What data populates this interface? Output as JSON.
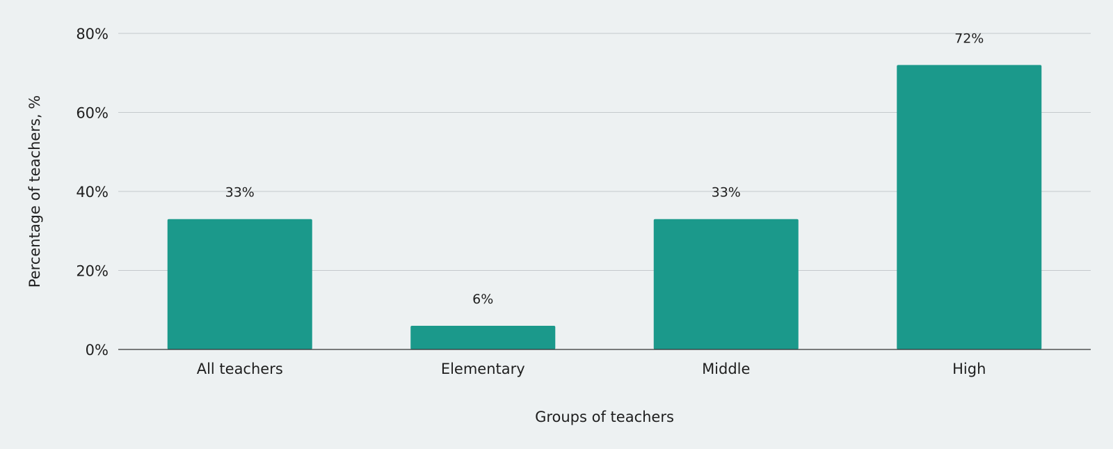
{
  "chart_data": {
    "type": "bar",
    "categories": [
      "All teachers",
      "Elementary",
      "Middle",
      "High"
    ],
    "values": [
      33,
      6,
      33,
      72
    ],
    "data_labels": [
      "33%",
      "6%",
      "33%",
      "72%"
    ],
    "title": "",
    "xlabel": "Groups of teachers",
    "ylabel": "Percentage of teachers, %",
    "ylim": [
      0,
      80
    ],
    "yticks": [
      0,
      20,
      40,
      60,
      80
    ],
    "ytick_labels": [
      "0%",
      "20%",
      "40%",
      "60%",
      "80%"
    ],
    "grid": true,
    "legend": "none"
  },
  "colors": {
    "background": "#edf1f2",
    "bar": "#1b998b",
    "grid": "#c4c9cc",
    "axis": "#333333",
    "text": "#1e1e1e"
  }
}
